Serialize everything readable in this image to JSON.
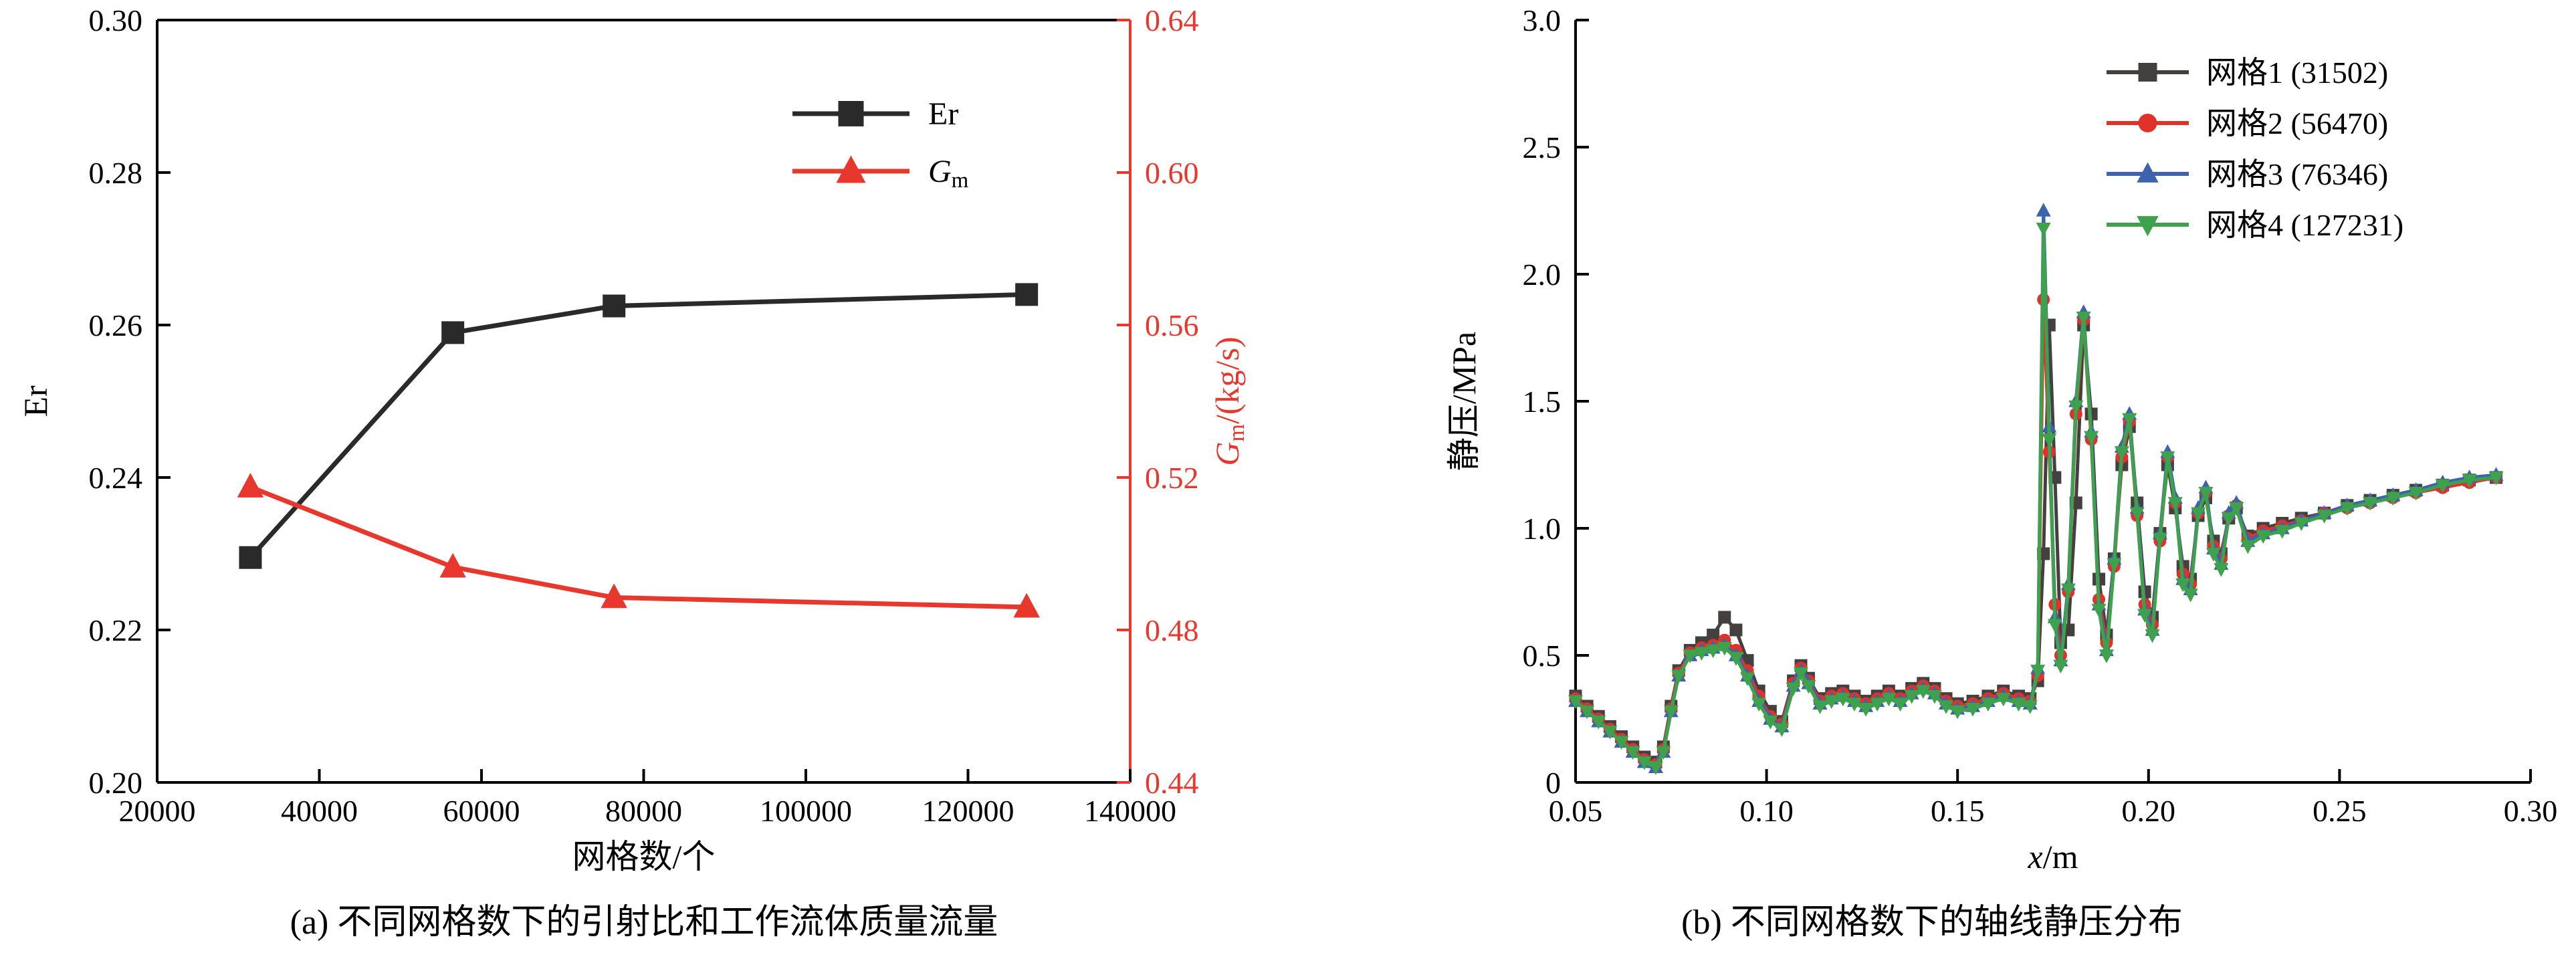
{
  "figure": {
    "background": "#ffffff",
    "text_color": "#000000"
  },
  "chart_data": [
    {
      "id": "a",
      "type": "line",
      "caption": "(a) 不同网格数下的引射比和工作流体质量流量",
      "xlabel": "网格数/个",
      "ylabel_left": "Er",
      "ylabel_right_parts": {
        "italic": "G",
        "sub": "m",
        "rest": "/(kg/s)"
      },
      "axis_color_right": "#e8382d",
      "xlim": [
        20000,
        140000
      ],
      "x_ticks": [
        "20000",
        "40000",
        "60000",
        "80000",
        "100000",
        "120000",
        "140000"
      ],
      "ylim_left": [
        0.2,
        0.3
      ],
      "y_ticks_left": [
        "0.20",
        "0.22",
        "0.24",
        "0.26",
        "0.28",
        "0.30"
      ],
      "ylim_right": [
        0.44,
        0.64
      ],
      "y_ticks_right": [
        "0.44",
        "0.48",
        "0.52",
        "0.56",
        "0.60",
        "0.64"
      ],
      "grid": false,
      "legend_position": "inside-top-center-right",
      "series": [
        {
          "name": "Er",
          "axis": "left",
          "color": "#2a2a2a",
          "marker": "square",
          "x": [
            31502,
            56470,
            76346,
            127231
          ],
          "y": [
            0.2295,
            0.259,
            0.2625,
            0.264
          ]
        },
        {
          "name": "Gm",
          "name_parts": {
            "italic": "G",
            "sub": "m",
            "rest": ""
          },
          "axis": "right",
          "color": "#e8382d",
          "marker": "triangle-up",
          "x": [
            31502,
            56470,
            76346,
            127231
          ],
          "y": [
            0.5175,
            0.4965,
            0.4885,
            0.486
          ]
        }
      ]
    },
    {
      "id": "b",
      "type": "line",
      "caption": "(b) 不同网格数下的轴线静压分布",
      "xlabel_parts": {
        "italic": "x",
        "sub": "",
        "rest": "/m"
      },
      "ylabel": "静压/MPa",
      "xlim": [
        0.05,
        0.3
      ],
      "x_ticks": [
        "0.05",
        "0.10",
        "0.15",
        "0.20",
        "0.25",
        "0.30"
      ],
      "ylim": [
        0,
        3.0
      ],
      "y_ticks": [
        "0",
        "0.5",
        "1.0",
        "1.5",
        "2.0",
        "2.5",
        "3.0"
      ],
      "grid": false,
      "legend_position": "inside-top-right",
      "x": [
        0.05,
        0.053,
        0.056,
        0.059,
        0.062,
        0.065,
        0.068,
        0.071,
        0.073,
        0.075,
        0.077,
        0.08,
        0.083,
        0.086,
        0.089,
        0.092,
        0.095,
        0.098,
        0.101,
        0.104,
        0.107,
        0.109,
        0.111,
        0.114,
        0.117,
        0.12,
        0.123,
        0.126,
        0.129,
        0.132,
        0.135,
        0.138,
        0.141,
        0.144,
        0.147,
        0.15,
        0.154,
        0.158,
        0.162,
        0.166,
        0.169,
        0.171,
        0.1725,
        0.174,
        0.1755,
        0.177,
        0.179,
        0.181,
        0.183,
        0.185,
        0.187,
        0.189,
        0.191,
        0.193,
        0.195,
        0.197,
        0.199,
        0.201,
        0.203,
        0.205,
        0.207,
        0.209,
        0.211,
        0.213,
        0.215,
        0.217,
        0.219,
        0.221,
        0.223,
        0.226,
        0.23,
        0.235,
        0.24,
        0.246,
        0.252,
        0.258,
        0.264,
        0.27,
        0.277,
        0.284,
        0.291
      ],
      "series": [
        {
          "name": "网格1 (31502)",
          "color": "#444040",
          "marker": "square",
          "y": [
            0.34,
            0.3,
            0.26,
            0.22,
            0.18,
            0.14,
            0.1,
            0.08,
            0.14,
            0.3,
            0.44,
            0.52,
            0.55,
            0.58,
            0.65,
            0.6,
            0.48,
            0.36,
            0.28,
            0.24,
            0.4,
            0.46,
            0.41,
            0.33,
            0.35,
            0.36,
            0.34,
            0.32,
            0.34,
            0.36,
            0.34,
            0.37,
            0.39,
            0.37,
            0.33,
            0.31,
            0.32,
            0.34,
            0.36,
            0.34,
            0.33,
            0.4,
            0.9,
            1.8,
            1.2,
            0.55,
            0.6,
            1.1,
            1.8,
            1.45,
            0.8,
            0.58,
            0.88,
            1.25,
            1.4,
            1.1,
            0.75,
            0.65,
            0.98,
            1.25,
            1.08,
            0.85,
            0.8,
            1.05,
            1.12,
            0.95,
            0.9,
            1.04,
            1.08,
            0.97,
            1.0,
            1.02,
            1.04,
            1.06,
            1.09,
            1.11,
            1.13,
            1.15,
            1.17,
            1.19,
            1.2
          ]
        },
        {
          "name": "网格2 (56470)",
          "color": "#e03229",
          "marker": "circle",
          "y": [
            0.33,
            0.29,
            0.25,
            0.21,
            0.17,
            0.13,
            0.09,
            0.07,
            0.13,
            0.29,
            0.43,
            0.51,
            0.53,
            0.54,
            0.56,
            0.52,
            0.44,
            0.34,
            0.26,
            0.23,
            0.39,
            0.45,
            0.4,
            0.32,
            0.34,
            0.35,
            0.33,
            0.31,
            0.33,
            0.35,
            0.33,
            0.36,
            0.38,
            0.36,
            0.32,
            0.3,
            0.31,
            0.33,
            0.35,
            0.33,
            0.32,
            0.42,
            1.9,
            1.3,
            0.7,
            0.5,
            0.75,
            1.45,
            1.82,
            1.35,
            0.72,
            0.55,
            0.85,
            1.28,
            1.42,
            1.05,
            0.7,
            0.62,
            0.95,
            1.28,
            1.1,
            0.82,
            0.78,
            1.06,
            1.14,
            0.93,
            0.88,
            1.05,
            1.09,
            0.96,
            0.99,
            1.01,
            1.03,
            1.06,
            1.08,
            1.1,
            1.12,
            1.14,
            1.16,
            1.18,
            1.2
          ]
        },
        {
          "name": "网格3 (76346)",
          "color": "#3f62ae",
          "marker": "triangle-up",
          "y": [
            0.32,
            0.28,
            0.24,
            0.2,
            0.16,
            0.12,
            0.08,
            0.06,
            0.12,
            0.28,
            0.42,
            0.5,
            0.52,
            0.53,
            0.54,
            0.5,
            0.42,
            0.32,
            0.25,
            0.22,
            0.38,
            0.44,
            0.39,
            0.31,
            0.33,
            0.34,
            0.32,
            0.3,
            0.32,
            0.34,
            0.32,
            0.35,
            0.37,
            0.35,
            0.31,
            0.29,
            0.3,
            0.32,
            0.34,
            0.32,
            0.31,
            0.45,
            2.25,
            1.4,
            0.65,
            0.48,
            0.78,
            1.5,
            1.85,
            1.38,
            0.7,
            0.52,
            0.88,
            1.32,
            1.45,
            1.08,
            0.68,
            0.6,
            0.98,
            1.3,
            1.12,
            0.8,
            0.76,
            1.08,
            1.16,
            0.92,
            0.86,
            1.06,
            1.1,
            0.95,
            0.98,
            1.0,
            1.03,
            1.06,
            1.09,
            1.11,
            1.13,
            1.15,
            1.18,
            1.2,
            1.21
          ]
        },
        {
          "name": "网格4 (127231)",
          "color": "#3ea24d",
          "marker": "triangle-down",
          "y": [
            0.32,
            0.28,
            0.24,
            0.2,
            0.16,
            0.12,
            0.08,
            0.06,
            0.12,
            0.28,
            0.42,
            0.5,
            0.51,
            0.52,
            0.53,
            0.49,
            0.41,
            0.31,
            0.24,
            0.21,
            0.37,
            0.43,
            0.38,
            0.3,
            0.32,
            0.33,
            0.31,
            0.29,
            0.31,
            0.33,
            0.31,
            0.34,
            0.36,
            0.34,
            0.3,
            0.28,
            0.29,
            0.31,
            0.33,
            0.31,
            0.3,
            0.44,
            2.18,
            1.35,
            0.62,
            0.46,
            0.76,
            1.48,
            1.83,
            1.36,
            0.68,
            0.5,
            0.86,
            1.3,
            1.43,
            1.06,
            0.66,
            0.58,
            0.96,
            1.28,
            1.1,
            0.78,
            0.74,
            1.06,
            1.14,
            0.9,
            0.84,
            1.04,
            1.08,
            0.93,
            0.97,
            0.99,
            1.02,
            1.05,
            1.08,
            1.1,
            1.12,
            1.14,
            1.17,
            1.19,
            1.2
          ]
        }
      ]
    }
  ]
}
